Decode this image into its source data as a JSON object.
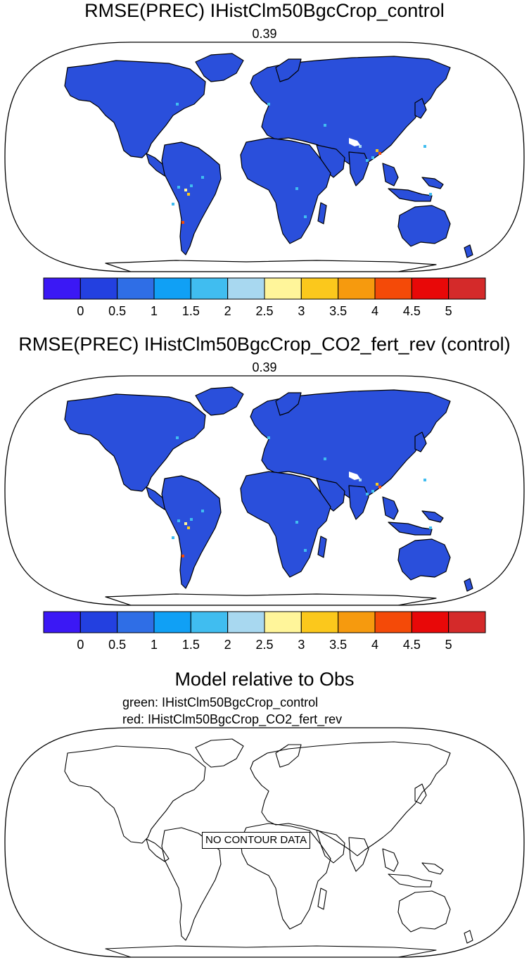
{
  "panels": [
    {
      "title": "RMSE(PREC) IHistClm50BgcCrop_control",
      "value_label": "0.39"
    },
    {
      "title": "RMSE(PREC) IHistClm50BgcCrop_CO2_fert_rev (control)",
      "value_label": "0.39"
    },
    {
      "title": "Model relative to Obs",
      "legend_green": "green: IHistClm50BgcCrop_control",
      "legend_red": "red: IHistClm50BgcCrop_CO2_fert_rev",
      "no_data_label": "NO CONTOUR DATA"
    }
  ],
  "colorbar": {
    "colors": [
      "#3b18f5",
      "#2340e0",
      "#2f6ee6",
      "#10a0f5",
      "#40bdf0",
      "#a8d8f0",
      "#fff59a",
      "#fbc81c",
      "#f69a0e",
      "#f44a08",
      "#e80808",
      "#d42a2a"
    ],
    "tick_labels": [
      "0",
      "0.5",
      "1",
      "1.5",
      "2",
      "2.5",
      "3",
      "3.5",
      "4",
      "4.5",
      "5"
    ]
  },
  "colors": {
    "land_fill": "#2a4fdb",
    "ocean": "#ffffff",
    "coast": "#000000"
  }
}
